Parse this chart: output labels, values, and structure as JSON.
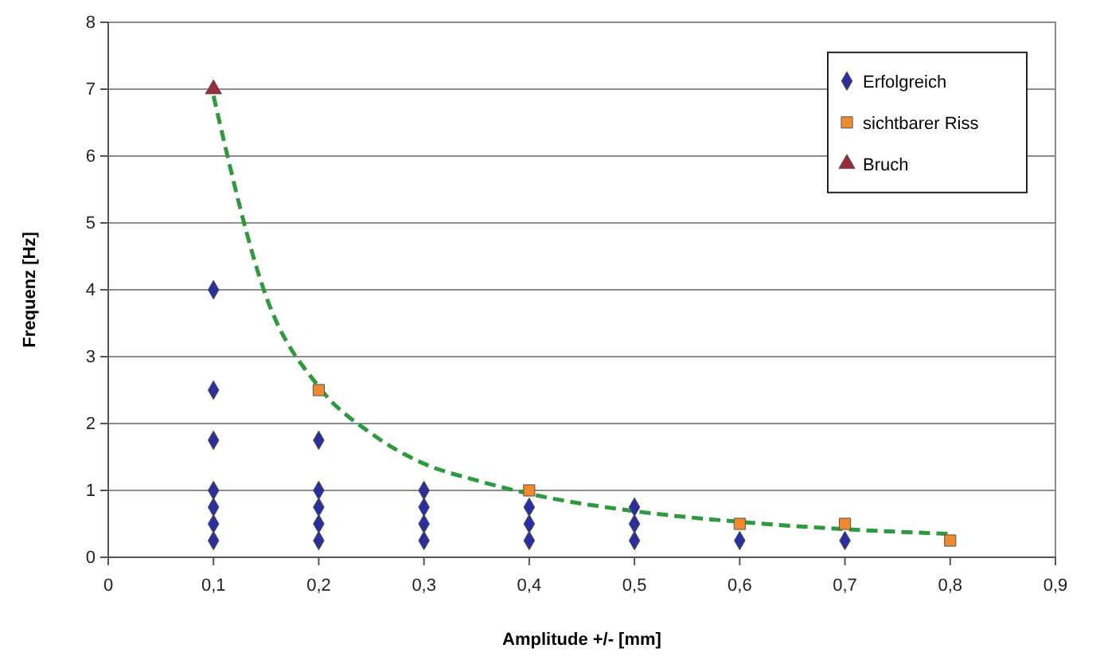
{
  "chart_data": {
    "type": "scatter",
    "xlabel": "Amplitude +/- [mm]",
    "ylabel": "Frequenz [Hz]",
    "xlim": [
      0,
      0.9
    ],
    "xticks": [
      0,
      {
        "value": 0.1,
        "label": "0,1"
      },
      {
        "value": 0.2,
        "label": "0,2"
      },
      {
        "value": 0.3,
        "label": "0,3"
      },
      {
        "value": 0.4,
        "label": "0,4"
      },
      {
        "value": 0.5,
        "label": "0,5"
      },
      {
        "value": 0.6,
        "label": "0,6"
      },
      {
        "value": 0.7,
        "label": "0,7"
      },
      {
        "value": 0.8,
        "label": "0,8"
      },
      {
        "value": 0.9,
        "label": "0,9"
      }
    ],
    "ylim": [
      0,
      8
    ],
    "yticks": [
      0,
      1,
      2,
      3,
      4,
      5,
      6,
      7,
      8
    ],
    "grid": "y",
    "legend": "top right",
    "series": [
      {
        "type": "line",
        "color": "#2e9a3e",
        "line_style": "dashed",
        "marker": "none",
        "x": [
          0.1,
          0.15,
          0.2,
          0.25,
          0.3,
          0.35,
          0.4,
          0.5,
          0.6,
          0.7,
          0.8
        ],
        "values": [
          6.9,
          3.9,
          2.55,
          1.85,
          1.4,
          1.15,
          0.95,
          0.69,
          0.53,
          0.42,
          0.35
        ]
      },
      {
        "name": "Erfolgreich",
        "color": "#2b2f9e",
        "marker": "diamond",
        "x": [
          0.1,
          0.1,
          0.1,
          0.1,
          0.1,
          0.1,
          0.1,
          0.2,
          0.2,
          0.2,
          0.2,
          0.2,
          0.3,
          0.3,
          0.3,
          0.3,
          0.4,
          0.4,
          0.4,
          0.5,
          0.5,
          0.5,
          0.6,
          0.7
        ],
        "values": [
          4,
          2.5,
          1.75,
          1,
          0.75,
          0.5,
          0.25,
          1.75,
          1,
          0.75,
          0.5,
          0.25,
          1,
          0.75,
          0.5,
          0.25,
          0.75,
          0.5,
          0.25,
          0.75,
          0.5,
          0.25,
          0.25,
          0.25
        ]
      },
      {
        "name": "sichtbarer Riss",
        "color": "#f08a2c",
        "marker": "square",
        "x": [
          0.2,
          0.4,
          0.6,
          0.7,
          0.8
        ],
        "values": [
          2.5,
          1,
          0.5,
          0.5,
          0.25
        ]
      },
      {
        "name": "Bruch",
        "color": "#9b2b3a",
        "marker": "triangle",
        "x": [
          0.1
        ],
        "values": [
          7
        ]
      }
    ]
  }
}
